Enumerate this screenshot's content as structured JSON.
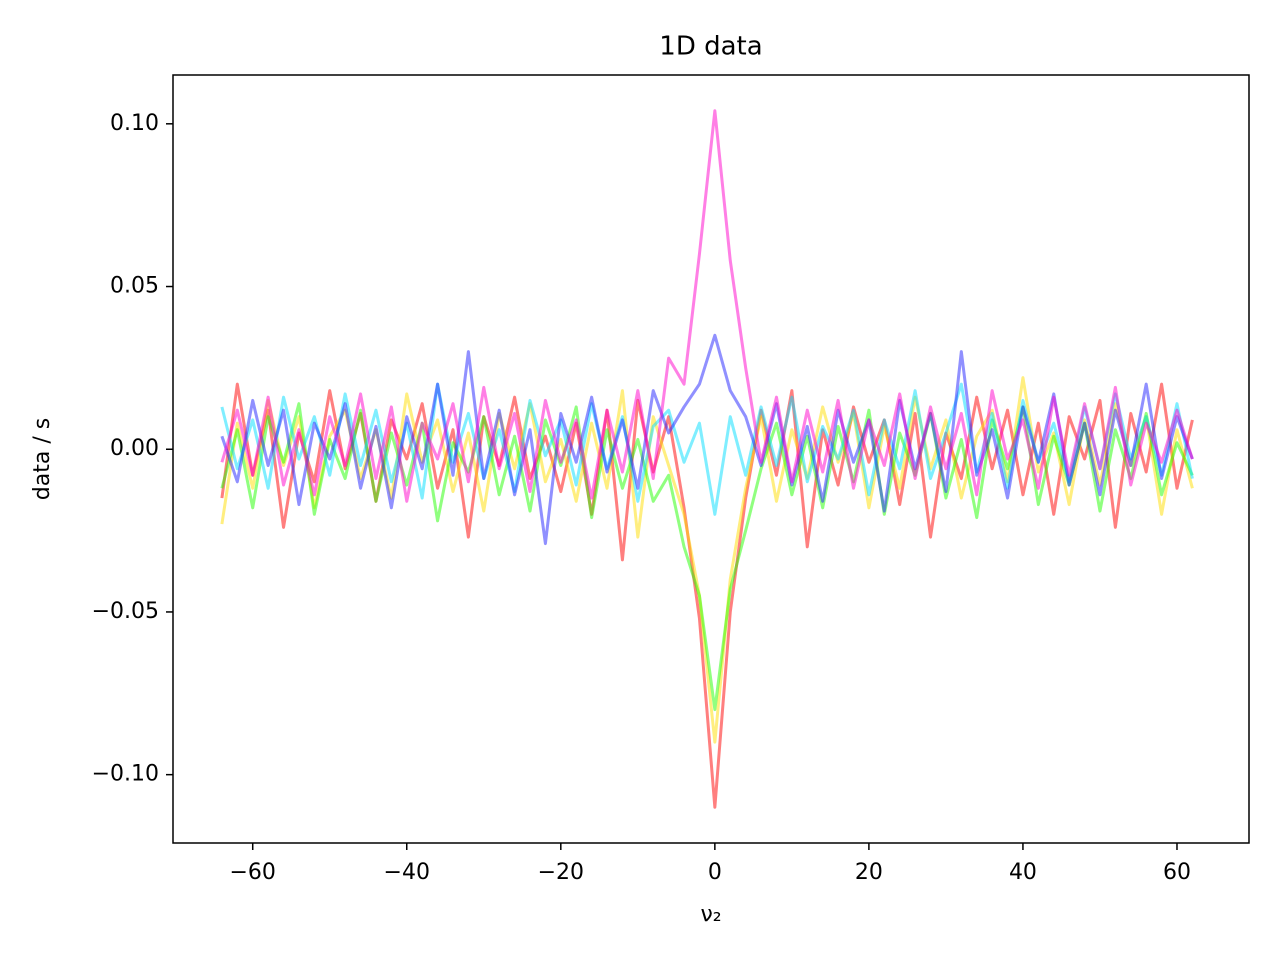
{
  "chart_data": {
    "type": "line",
    "title": "1D data",
    "x_label": "ν₂",
    "y_label": "data / s",
    "x": [
      -64,
      -62,
      -60,
      -58,
      -56,
      -54,
      -52,
      -50,
      -48,
      -46,
      -44,
      -42,
      -40,
      -38,
      -36,
      -34,
      -32,
      -30,
      -28,
      -26,
      -24,
      -22,
      -20,
      -18,
      -16,
      -14,
      -12,
      -10,
      -8,
      -6,
      -4,
      -2,
      0,
      2,
      4,
      6,
      8,
      10,
      12,
      14,
      16,
      18,
      20,
      22,
      24,
      26,
      28,
      30,
      32,
      34,
      36,
      38,
      40,
      42,
      44,
      46,
      48,
      50,
      52,
      54,
      56,
      58,
      60,
      62
    ],
    "series": [
      {
        "color": "#ff0000",
        "values": [
          -0.015,
          0.02,
          -0.008,
          0.012,
          -0.024,
          0.005,
          -0.01,
          0.018,
          -0.006,
          0.011,
          -0.016,
          0.009,
          -0.003,
          0.014,
          -0.012,
          0.006,
          -0.027,
          0.01,
          -0.005,
          0.016,
          -0.009,
          0.004,
          -0.013,
          0.008,
          -0.02,
          0.012,
          -0.034,
          0.015,
          -0.007,
          0.01,
          -0.018,
          -0.052,
          -0.11,
          -0.05,
          -0.015,
          0.012,
          -0.008,
          0.018,
          -0.03,
          0.006,
          -0.011,
          0.013,
          -0.004,
          0.009,
          -0.017,
          0.011,
          -0.027,
          0.005,
          -0.009,
          0.016,
          -0.006,
          0.012,
          -0.014,
          0.008,
          -0.02,
          0.01,
          -0.003,
          0.015,
          -0.024,
          0.011,
          -0.007,
          0.02,
          -0.012,
          0.009
        ]
      },
      {
        "color": "#ffdd00",
        "values": [
          -0.023,
          0.008,
          -0.012,
          0.015,
          -0.005,
          0.01,
          -0.018,
          0.004,
          0.012,
          -0.009,
          0.006,
          -0.015,
          0.017,
          -0.004,
          0.009,
          -0.013,
          0.005,
          -0.019,
          0.011,
          -0.006,
          0.014,
          -0.01,
          0.003,
          -0.016,
          0.008,
          -0.012,
          0.018,
          -0.027,
          0.01,
          -0.005,
          -0.02,
          -0.045,
          -0.09,
          -0.04,
          -0.012,
          0.01,
          -0.016,
          0.006,
          -0.009,
          0.013,
          -0.004,
          0.011,
          -0.018,
          0.007,
          -0.012,
          0.016,
          -0.006,
          0.009,
          -0.015,
          0.004,
          0.012,
          -0.01,
          0.022,
          -0.007,
          0.005,
          -0.017,
          0.009,
          -0.011,
          0.014,
          -0.005,
          0.01,
          -0.02,
          0.006,
          -0.012
        ]
      },
      {
        "color": "#22ff00",
        "values": [
          -0.012,
          0.006,
          -0.018,
          0.01,
          -0.004,
          0.014,
          -0.02,
          0.003,
          -0.009,
          0.012,
          -0.016,
          0.005,
          -0.011,
          0.008,
          -0.022,
          0.002,
          -0.007,
          0.01,
          -0.014,
          0.004,
          -0.019,
          0.009,
          -0.005,
          0.013,
          -0.021,
          0.006,
          -0.012,
          0.003,
          -0.016,
          -0.008,
          -0.03,
          -0.045,
          -0.08,
          -0.043,
          -0.025,
          -0.006,
          0.008,
          -0.014,
          0.004,
          -0.018,
          0.007,
          -0.01,
          0.012,
          -0.02,
          0.005,
          -0.008,
          0.011,
          -0.015,
          0.003,
          -0.021,
          0.009,
          -0.006,
          0.013,
          -0.017,
          0.004,
          -0.011,
          0.008,
          -0.019,
          0.006,
          -0.009,
          0.011,
          -0.014,
          0.002,
          -0.008
        ]
      },
      {
        "color": "#00ddff",
        "values": [
          0.013,
          -0.006,
          0.009,
          -0.012,
          0.016,
          -0.003,
          0.01,
          -0.008,
          0.017,
          -0.005,
          0.012,
          -0.01,
          0.008,
          -0.015,
          0.02,
          -0.004,
          0.011,
          -0.009,
          0.006,
          -0.013,
          0.015,
          -0.002,
          0.009,
          -0.011,
          0.014,
          -0.006,
          0.01,
          -0.016,
          0.007,
          0.012,
          -0.004,
          0.008,
          -0.02,
          0.01,
          -0.008,
          0.013,
          -0.005,
          0.016,
          -0.01,
          0.007,
          -0.003,
          0.012,
          -0.014,
          0.009,
          -0.006,
          0.018,
          -0.009,
          0.005,
          0.02,
          -0.007,
          0.011,
          -0.012,
          0.015,
          -0.004,
          0.008,
          -0.01,
          0.013,
          -0.006,
          0.017,
          -0.003,
          0.01,
          -0.008,
          0.014,
          -0.009
        ]
      },
      {
        "color": "#2222ff",
        "values": [
          0.004,
          -0.01,
          0.015,
          -0.005,
          0.012,
          -0.017,
          0.008,
          -0.003,
          0.014,
          -0.012,
          0.007,
          -0.018,
          0.01,
          -0.006,
          0.02,
          -0.008,
          0.03,
          -0.009,
          0.012,
          -0.014,
          0.006,
          -0.029,
          0.011,
          -0.004,
          0.016,
          -0.007,
          0.009,
          -0.012,
          0.018,
          0.005,
          0.013,
          0.02,
          0.035,
          0.018,
          0.01,
          -0.005,
          0.014,
          -0.011,
          0.007,
          -0.016,
          0.012,
          -0.004,
          0.009,
          -0.019,
          0.015,
          -0.006,
          0.011,
          -0.013,
          0.03,
          -0.008,
          0.006,
          -0.015,
          0.013,
          -0.004,
          0.017,
          -0.011,
          0.008,
          -0.014,
          0.012,
          -0.005,
          0.02,
          -0.009,
          0.01,
          -0.003
        ]
      },
      {
        "color": "#ff00cc",
        "values": [
          -0.004,
          0.012,
          -0.008,
          0.016,
          -0.011,
          0.006,
          -0.014,
          0.01,
          -0.005,
          0.017,
          -0.009,
          0.013,
          -0.016,
          0.008,
          -0.003,
          0.014,
          -0.01,
          0.019,
          -0.006,
          0.011,
          -0.013,
          0.015,
          -0.004,
          0.009,
          -0.015,
          0.012,
          -0.007,
          0.018,
          -0.009,
          0.028,
          0.02,
          0.06,
          0.104,
          0.058,
          0.025,
          -0.004,
          0.016,
          -0.01,
          0.012,
          -0.007,
          0.015,
          -0.012,
          0.009,
          -0.005,
          0.017,
          -0.009,
          0.013,
          -0.006,
          0.011,
          -0.014,
          0.018,
          -0.003,
          0.009,
          -0.012,
          0.016,
          -0.008,
          0.014,
          -0.006,
          0.019,
          -0.011,
          0.008,
          -0.004,
          0.012,
          -0.003
        ]
      }
    ],
    "xlim": [
      -70.35,
      69.35
    ],
    "ylim": [
      -0.121,
      0.115
    ],
    "xticks": [
      {
        "value": -60,
        "label": "−60"
      },
      {
        "value": -40,
        "label": "−40"
      },
      {
        "value": -20,
        "label": "−20"
      },
      0,
      20,
      40,
      60
    ],
    "yticks": [
      {
        "value": -0.1,
        "label": "−0.10"
      },
      {
        "value": -0.05,
        "label": "−0.05"
      },
      {
        "value": 0,
        "label": "0.00"
      },
      {
        "value": 0.05,
        "label": "0.05"
      },
      {
        "value": 0.1,
        "label": "0.10"
      }
    ]
  }
}
